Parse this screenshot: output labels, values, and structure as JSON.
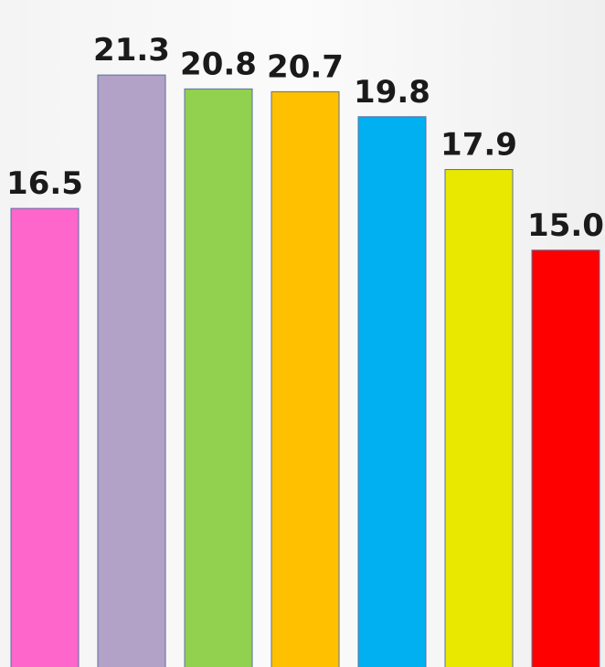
{
  "chart_data": {
    "type": "bar",
    "values": [
      16.5,
      21.3,
      20.8,
      20.7,
      19.8,
      17.9,
      15.0
    ],
    "value_labels": [
      "16.5",
      "21.3",
      "20.8",
      "20.7",
      "19.8",
      "17.9",
      "15.0"
    ],
    "colors": [
      "#ff66cc",
      "#b3a2c7",
      "#92d050",
      "#ffc000",
      "#00b0f0",
      "#e8e800",
      "#ff0000"
    ],
    "ylim": [
      0,
      24
    ]
  }
}
